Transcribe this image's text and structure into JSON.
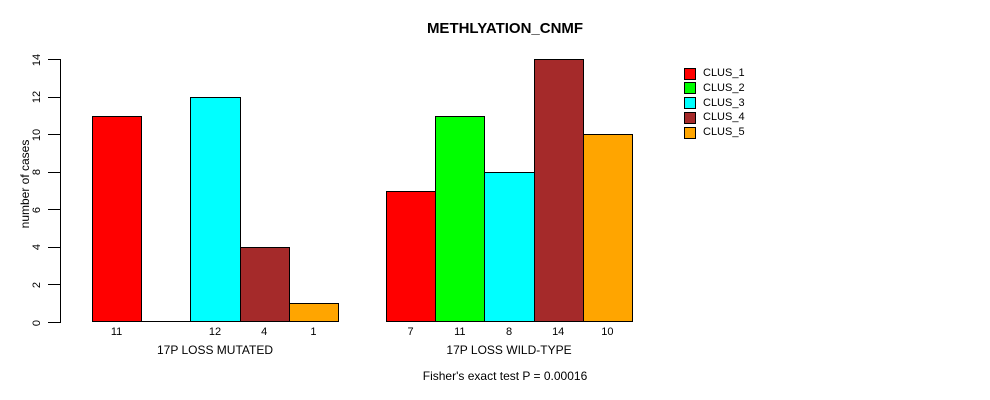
{
  "chart_data": {
    "type": "bar",
    "title": "METHLYATION_CNMF",
    "ylabel": "number of cases",
    "xlabel": "",
    "ylim": [
      0,
      14
    ],
    "yticks": [
      0,
      2,
      4,
      6,
      8,
      10,
      12,
      14
    ],
    "grid": false,
    "legend_position": "right",
    "series": [
      {
        "name": "CLUS_1",
        "color": "#FF0000"
      },
      {
        "name": "CLUS_2",
        "color": "#00FF00"
      },
      {
        "name": "CLUS_3",
        "color": "#00FFFF"
      },
      {
        "name": "CLUS_4",
        "color": "#A52A2A"
      },
      {
        "name": "CLUS_5",
        "color": "#FFA500"
      }
    ],
    "groups": [
      {
        "label": "17P LOSS MUTATED",
        "values": [
          11,
          0,
          12,
          4,
          1
        ],
        "bar_labels": [
          "11",
          "",
          "12",
          "4",
          "1"
        ]
      },
      {
        "label": "17P LOSS WILD-TYPE",
        "values": [
          7,
          11,
          8,
          14,
          10
        ],
        "bar_labels": [
          "7",
          "11",
          "8",
          "14",
          "10"
        ]
      }
    ],
    "annotation": "Fisher's exact test P = 0.00016"
  }
}
